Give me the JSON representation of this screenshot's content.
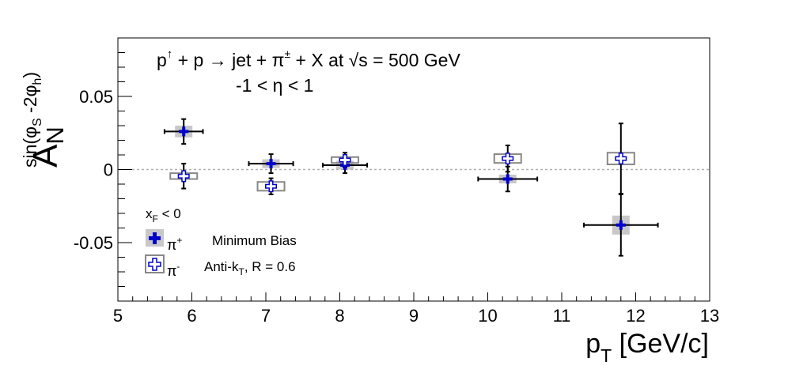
{
  "chart_data": {
    "type": "scatter",
    "title_line1": {
      "p": "p",
      "up": "↑",
      "mid": " + p → jet + π",
      "pm": "±",
      "tail": " + X at  ",
      "sqrt": "√s",
      "energy": " = 500 GeV"
    },
    "title_line2": "-1 < η < 1",
    "xlabel": {
      "main": "p",
      "sub": "T",
      "unit": " [GeV/c]"
    },
    "ylabel": {
      "main": "A",
      "sub": "N",
      "sup": "sin(φ",
      "sup_s": "S",
      "sup_mid": " -2φ",
      "sup_h": "h",
      "sup_end": ")"
    },
    "xlim": [
      5,
      13
    ],
    "ylim": [
      -0.09,
      0.09
    ],
    "xticks": [
      "5",
      "6",
      "7",
      "8",
      "9",
      "10",
      "11",
      "12",
      "13"
    ],
    "yticks": [
      {
        "v": 0.05,
        "label": "0.05"
      },
      {
        "v": 0,
        "label": "0"
      },
      {
        "v": -0.05,
        "label": "-0.05"
      }
    ],
    "legend": {
      "placement": "bottom-left",
      "header_main": "x",
      "header_sub": "F",
      "header_tail": " < 0",
      "pi_plus": {
        "main": "π",
        "sup": "+"
      },
      "pi_minus": {
        "main": "π",
        "sup": "-"
      },
      "label1": "Minimum Bias",
      "label2_main": "Anti-k",
      "label2_sub": "T",
      "label2_tail": ", R = 0.6"
    },
    "series": [
      {
        "marker": "filled-cross",
        "color": "#0000cc",
        "sys_color": "#c8c8c8",
        "points": [
          {
            "x": 5.89,
            "y": 0.026,
            "xerr": 0.26,
            "yerr": 0.0085,
            "sys": 0.004
          },
          {
            "x": 7.07,
            "y": 0.004,
            "xerr": 0.3,
            "yerr": 0.0065,
            "sys": 0.003
          },
          {
            "x": 8.07,
            "y": 0.003,
            "xerr": 0.3,
            "yerr": 0.0055,
            "sys": 0.003
          },
          {
            "x": 10.27,
            "y": -0.0065,
            "xerr": 0.4,
            "yerr": 0.0085,
            "sys": 0.003
          },
          {
            "x": 11.8,
            "y": -0.038,
            "xerr": 0.5,
            "yerr": 0.021,
            "sys": 0.0065
          }
        ]
      },
      {
        "marker": "open-cross",
        "color": "#0000cc",
        "sys_color": "#888888",
        "points": [
          {
            "x": 5.89,
            "y": -0.0045,
            "xerr": 0,
            "yerr": 0.0085,
            "sys": 0.002
          },
          {
            "x": 7.07,
            "y": -0.0115,
            "xerr": 0,
            "yerr": 0.0055,
            "sys": 0.003
          },
          {
            "x": 8.07,
            "y": 0.0065,
            "xerr": 0,
            "yerr": 0.005,
            "sys": 0.002
          },
          {
            "x": 10.27,
            "y": 0.0075,
            "xerr": 0,
            "yerr": 0.009,
            "sys": 0.003
          },
          {
            "x": 11.8,
            "y": 0.0075,
            "xerr": 0,
            "yerr": 0.024,
            "sys": 0.004
          }
        ]
      }
    ]
  }
}
